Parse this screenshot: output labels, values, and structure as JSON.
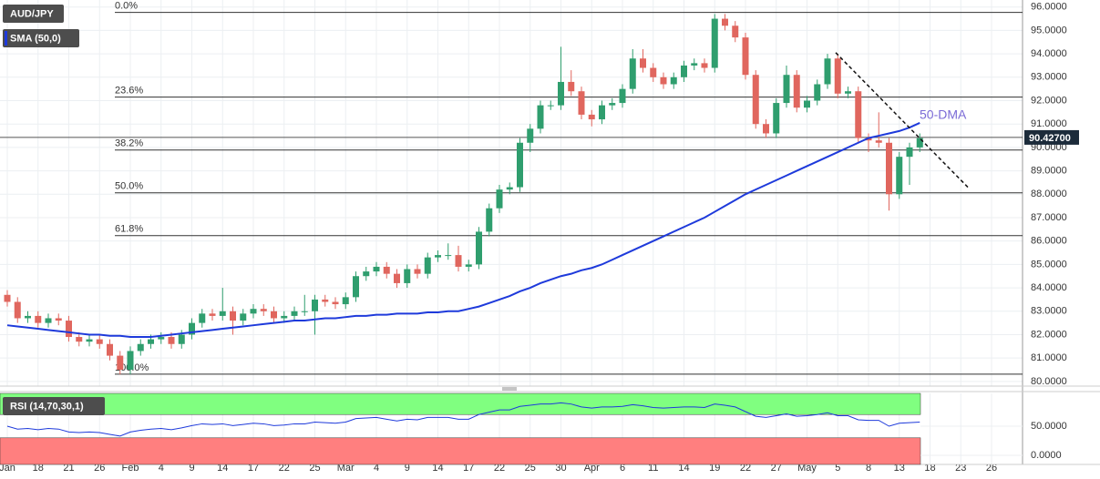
{
  "chart_data": {
    "type": "candlestick",
    "grid": true,
    "categories": [
      "Jan",
      null,
      null,
      "18",
      null,
      null,
      "21",
      null,
      null,
      "26",
      null,
      null,
      "Feb",
      null,
      null,
      "4",
      null,
      null,
      "9",
      null,
      null,
      "14",
      null,
      null,
      "17",
      null,
      null,
      "22",
      null,
      null,
      "25",
      null,
      null,
      "Mar",
      null,
      null,
      "4",
      null,
      null,
      "9",
      null,
      null,
      "14",
      null,
      null,
      "17",
      null,
      null,
      "22",
      null,
      null,
      "25",
      null,
      null,
      "30",
      null,
      null,
      "Apr",
      null,
      null,
      "6",
      null,
      null,
      "11",
      null,
      null,
      "14",
      null,
      null,
      "19",
      null,
      null,
      "22",
      null,
      null,
      "27",
      null,
      null,
      "May",
      null,
      null,
      "5",
      null,
      null,
      "8",
      null,
      null,
      "13",
      null,
      null,
      "18",
      null,
      null,
      "23",
      null,
      null,
      "26"
    ],
    "series": [
      {
        "name": "AUD/JPY",
        "up_color": "#2f9e6e",
        "down_color": "#e0665e",
        "open": [
          83.7,
          83.4,
          82.7,
          82.8,
          82.5,
          82.7,
          82.6,
          81.9,
          81.7,
          81.8,
          81.6,
          81.1,
          80.5,
          81.3,
          81.6,
          81.8,
          81.9,
          81.6,
          82.0,
          82.5,
          82.9,
          82.8,
          83.0,
          82.6,
          82.9,
          83.1,
          83.0,
          82.7,
          82.8,
          83.0,
          83.0,
          83.5,
          83.4,
          83.3,
          83.6,
          84.5,
          84.7,
          84.9,
          84.6,
          84.2,
          84.8,
          84.6,
          85.3,
          85.4,
          85.4,
          84.9,
          85.0,
          86.4,
          87.4,
          88.2,
          88.3,
          90.2,
          90.8,
          91.8,
          91.8,
          92.8,
          92.4,
          91.4,
          91.2,
          91.8,
          91.9,
          92.5,
          93.8,
          93.4,
          93.0,
          92.7,
          93.0,
          93.5,
          93.6,
          93.4,
          95.5,
          95.2,
          94.7,
          93.1,
          91.0,
          90.6,
          91.9,
          93.1,
          91.7,
          92.0,
          92.7,
          93.8,
          92.3,
          92.4,
          90.4,
          90.3,
          90.2,
          88.0,
          89.6,
          90.0,
          null,
          null,
          null,
          null,
          null,
          null,
          null
        ],
        "high": [
          83.9,
          83.6,
          83.0,
          83.0,
          82.9,
          82.9,
          82.8,
          82.1,
          82.0,
          82.0,
          81.8,
          81.3,
          81.5,
          81.8,
          82.0,
          82.1,
          82.1,
          82.2,
          82.7,
          83.1,
          83.1,
          84.0,
          83.2,
          83.1,
          83.3,
          83.3,
          83.2,
          83.0,
          83.2,
          83.7,
          83.7,
          83.7,
          83.6,
          83.8,
          84.7,
          84.9,
          85.1,
          85.1,
          84.8,
          85.0,
          85.0,
          85.5,
          85.6,
          85.9,
          85.8,
          85.2,
          86.6,
          87.6,
          88.4,
          88.5,
          90.4,
          91.0,
          92.0,
          92.0,
          94.3,
          93.3,
          92.6,
          91.6,
          92.0,
          92.1,
          92.7,
          94.2,
          94.2,
          93.6,
          93.2,
          93.2,
          93.7,
          93.8,
          93.8,
          95.7,
          95.7,
          95.4,
          94.9,
          93.3,
          91.2,
          92.1,
          93.5,
          93.3,
          92.2,
          92.9,
          94.0,
          94.0,
          92.6,
          92.6,
          90.6,
          91.5,
          90.4,
          89.8,
          90.2,
          90.6,
          null,
          null,
          null,
          null,
          null,
          null,
          null
        ],
        "low": [
          83.2,
          82.5,
          82.5,
          82.3,
          82.3,
          82.4,
          81.7,
          81.5,
          81.5,
          81.4,
          80.9,
          80.3,
          80.3,
          81.1,
          81.4,
          81.6,
          81.4,
          81.4,
          81.8,
          82.3,
          82.6,
          82.6,
          82.0,
          82.4,
          82.7,
          82.8,
          82.5,
          82.5,
          82.6,
          82.8,
          82.0,
          83.2,
          83.1,
          83.1,
          83.4,
          84.3,
          84.5,
          84.4,
          84.0,
          84.0,
          84.4,
          84.4,
          85.1,
          85.2,
          84.7,
          84.7,
          84.8,
          86.2,
          87.2,
          88.0,
          88.1,
          89.8,
          90.6,
          91.6,
          91.6,
          92.2,
          91.2,
          90.9,
          91.0,
          91.6,
          91.7,
          92.3,
          93.2,
          92.8,
          92.5,
          92.5,
          92.8,
          93.3,
          93.2,
          93.2,
          95.0,
          94.5,
          92.9,
          90.8,
          90.4,
          90.4,
          91.7,
          91.5,
          91.5,
          91.8,
          92.5,
          92.1,
          92.1,
          90.2,
          89.8,
          90.0,
          87.3,
          87.8,
          88.4,
          89.8,
          null,
          null,
          null,
          null,
          null,
          null,
          null
        ],
        "close": [
          83.4,
          82.7,
          82.8,
          82.5,
          82.7,
          82.6,
          81.9,
          81.7,
          81.8,
          81.6,
          81.1,
          80.5,
          81.3,
          81.6,
          81.8,
          81.9,
          81.6,
          82.0,
          82.5,
          82.9,
          82.8,
          83.0,
          82.6,
          82.9,
          83.1,
          83.0,
          82.7,
          82.8,
          83.0,
          83.0,
          83.5,
          83.4,
          83.3,
          83.6,
          84.5,
          84.7,
          84.9,
          84.6,
          84.2,
          84.8,
          84.6,
          85.3,
          85.4,
          85.4,
          84.9,
          85.0,
          86.4,
          87.4,
          88.2,
          88.3,
          90.2,
          90.8,
          91.8,
          91.8,
          92.8,
          92.4,
          91.4,
          91.2,
          91.8,
          91.9,
          92.5,
          93.8,
          93.4,
          93.0,
          92.7,
          93.0,
          93.5,
          93.6,
          93.4,
          95.5,
          95.2,
          94.7,
          93.1,
          91.0,
          90.6,
          91.9,
          93.1,
          91.7,
          92.0,
          92.7,
          93.8,
          92.3,
          92.4,
          90.4,
          90.3,
          90.2,
          88.0,
          89.6,
          90.0,
          90.4,
          null,
          null,
          null,
          null,
          null,
          null,
          null
        ]
      },
      {
        "name": "SMA (50,0)",
        "color": "#1e3adb",
        "values": [
          82.4,
          82.35,
          82.3,
          82.25,
          82.2,
          82.15,
          82.1,
          82.05,
          82.0,
          82.0,
          81.95,
          81.95,
          81.9,
          81.9,
          81.9,
          81.95,
          82.0,
          82.05,
          82.1,
          82.15,
          82.2,
          82.25,
          82.3,
          82.35,
          82.4,
          82.45,
          82.5,
          82.55,
          82.6,
          82.6,
          82.65,
          82.7,
          82.7,
          82.75,
          82.8,
          82.8,
          82.85,
          82.85,
          82.9,
          82.9,
          82.9,
          82.95,
          82.95,
          83.0,
          83.0,
          83.1,
          83.2,
          83.35,
          83.5,
          83.65,
          83.85,
          84.0,
          84.2,
          84.35,
          84.5,
          84.6,
          84.75,
          84.85,
          85.0,
          85.2,
          85.4,
          85.6,
          85.8,
          86.0,
          86.2,
          86.4,
          86.6,
          86.8,
          87.0,
          87.25,
          87.5,
          87.75,
          88.0,
          88.2,
          88.4,
          88.6,
          88.8,
          89.0,
          89.2,
          89.4,
          89.6,
          89.8,
          90.0,
          90.2,
          90.4,
          90.5,
          90.6,
          90.7,
          90.85,
          91.05,
          null,
          null,
          null,
          null,
          null,
          null,
          null
        ]
      }
    ],
    "ylim": [
      79.8,
      96.3
    ],
    "yticks": [
      {
        "value": 80,
        "label": "80.0000"
      },
      {
        "value": 81,
        "label": "81.0000"
      },
      {
        "value": 82,
        "label": "82.0000"
      },
      {
        "value": 83,
        "label": "83.0000"
      },
      {
        "value": 84,
        "label": "84.0000"
      },
      {
        "value": 85,
        "label": "85.0000"
      },
      {
        "value": 86,
        "label": "86.0000"
      },
      {
        "value": 87,
        "label": "87.0000"
      },
      {
        "value": 88,
        "label": "88.0000"
      },
      {
        "value": 89,
        "label": "89.0000"
      },
      {
        "value": 90,
        "label": "90.0000"
      },
      {
        "value": 91,
        "label": "91.0000"
      },
      {
        "value": 92,
        "label": "92.0000"
      },
      {
        "value": 93,
        "label": "93.0000"
      },
      {
        "value": 94,
        "label": "94.0000"
      },
      {
        "value": 95,
        "label": "95.0000"
      },
      {
        "value": 96,
        "label": "96.0000"
      }
    ],
    "last_price": {
      "value": 90.427,
      "label": "90.42700"
    },
    "fib_levels": [
      {
        "label": "0.0%",
        "value": 95.77
      },
      {
        "label": "23.6%",
        "value": 92.15
      },
      {
        "label": "38.2%",
        "value": 89.89
      },
      {
        "label": "50.0%",
        "value": 88.06
      },
      {
        "label": "61.8%",
        "value": 86.23
      },
      {
        "label": "100.0%",
        "value": 80.31
      }
    ],
    "annotation": "50-DMA",
    "trendline": {
      "start": 94.05,
      "end": 88.3
    },
    "rsi": {
      "name": "RSI (14,70,30,1)",
      "color": "#1e3adb",
      "ylim": [
        0,
        100
      ],
      "yticks": [
        {
          "value": 50,
          "label": "50.0000"
        },
        {
          "value": 0,
          "label": "0.0000"
        }
      ],
      "overbought": 70,
      "oversold": 30,
      "values": [
        50,
        45,
        46,
        44,
        46,
        45,
        40,
        39,
        40,
        39,
        36,
        33,
        40,
        43,
        45,
        46,
        44,
        47,
        51,
        54,
        53,
        54,
        51,
        53,
        55,
        54,
        51,
        52,
        54,
        54,
        57,
        56,
        55,
        57,
        63,
        64,
        65,
        62,
        59,
        62,
        61,
        65,
        65,
        65,
        62,
        62,
        70,
        74,
        78,
        78,
        84,
        86,
        88,
        88,
        90,
        88,
        83,
        81,
        83,
        83,
        84,
        87,
        85,
        82,
        81,
        82,
        83,
        83,
        82,
        88,
        86,
        83,
        75,
        67,
        65,
        68,
        71,
        67,
        68,
        70,
        73,
        68,
        68,
        61,
        60,
        60,
        50,
        55,
        56,
        57,
        null,
        null,
        null,
        null,
        null,
        null,
        null
      ]
    }
  }
}
